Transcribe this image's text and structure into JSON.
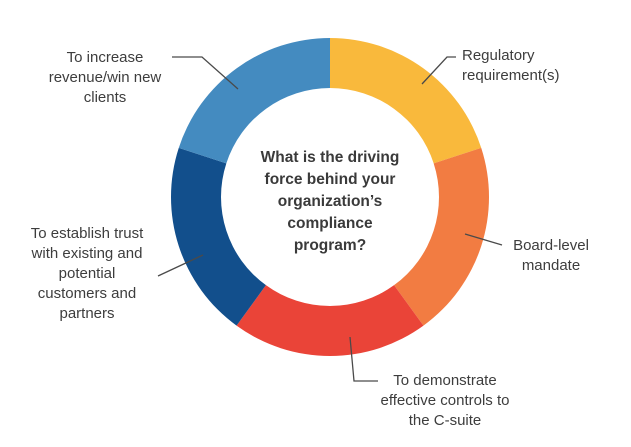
{
  "chart_data": {
    "type": "pie",
    "variant": "donut",
    "title": "What is the driving force behind your organization's compliance program?",
    "categories": [
      "Regulatory requirement(s)",
      "Board-level mandate",
      "To demonstrate effective controls to the C-suite",
      "To establish trust with existing and potential customers and partners",
      "To increase revenue/win new clients"
    ],
    "values": [
      20,
      20,
      20,
      20,
      20
    ],
    "colors": [
      "#f9b93c",
      "#f27c42",
      "#ea4438",
      "#124f8c",
      "#448bc0"
    ],
    "legend": "none"
  },
  "labels": {
    "l0": [
      "Regulatory",
      "requirement(s)"
    ],
    "l1": [
      "Board-level",
      "mandate"
    ],
    "l2": [
      "To demonstrate",
      "effective controls to",
      "the C-suite"
    ],
    "l3": [
      "To establish trust",
      "with existing and",
      "potential",
      "customers and",
      "partners"
    ],
    "l4": [
      "To increase",
      "revenue/win new",
      "clients"
    ]
  },
  "center_lines": [
    "What is the driving",
    "force behind your",
    "organization’s",
    "compliance",
    "program?"
  ]
}
